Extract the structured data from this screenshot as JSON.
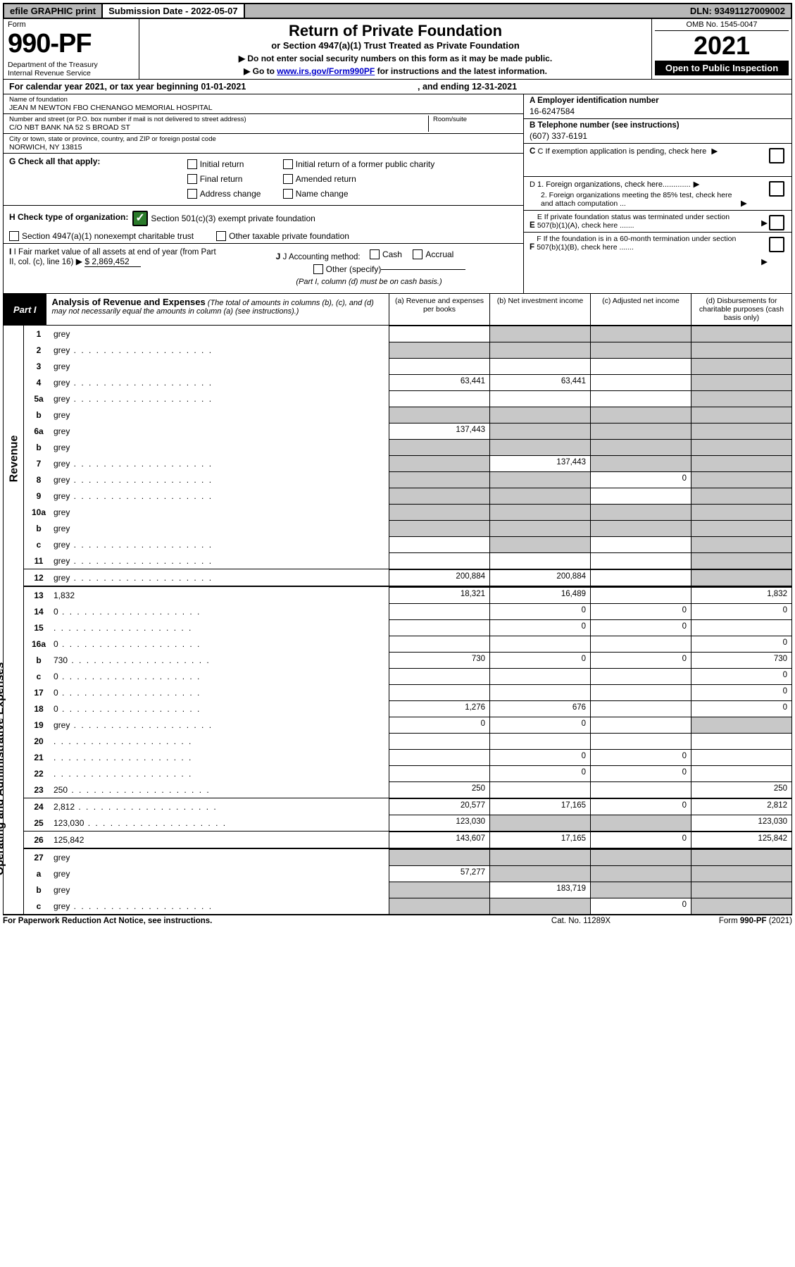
{
  "topbar": {
    "efile": "efile GRAPHIC print",
    "subdate_label": "Submission Date - ",
    "subdate": "2022-05-07",
    "dln_label": "DLN: ",
    "dln": "93491127009002"
  },
  "header": {
    "form_word": "Form",
    "form_num": "990-PF",
    "dept": "Department of the Treasury\nInternal Revenue Service",
    "title": "Return of Private Foundation",
    "sub1": "or Section 4947(a)(1) Trust Treated as Private Foundation",
    "sub2a": "▶ Do not enter social security numbers on this form as it may be made public.",
    "sub2b_pre": "▶ Go to ",
    "sub2b_link": "www.irs.gov/Form990PF",
    "sub2b_post": " for instructions and the latest information.",
    "omb": "OMB No. 1545-0047",
    "year": "2021",
    "open": "Open to Public Inspection"
  },
  "cal": {
    "pre": "For calendar year 2021, or tax year beginning ",
    "begin": "01-01-2021",
    "mid": ", and ending ",
    "end": "12-31-2021"
  },
  "info": {
    "name_label": "Name of foundation",
    "name": "JEAN M NEWTON FBO CHENANGO MEMORIAL HOSPITAL",
    "addr_label": "Number and street (or P.O. box number if mail is not delivered to street address)",
    "addr": "C/O NBT BANK NA 52 S BROAD ST",
    "room_label": "Room/suite",
    "city_label": "City or town, state or province, country, and ZIP or foreign postal code",
    "city": "NORWICH, NY  13815",
    "a_label": "A Employer identification number",
    "a_val": "16-6247584",
    "b_label": "B Telephone number (see instructions)",
    "b_val": "(607) 337-6191",
    "c_label": "C  If exemption application is pending, check here",
    "d1": "D 1. Foreign organizations, check here.............",
    "d2": "2. Foreign organizations meeting the 85% test, check here and attach computation ...",
    "e_label": "E  If private foundation status was terminated under section 507(b)(1)(A), check here .......",
    "f_label": "F  If the foundation is in a 60-month termination under section 507(b)(1)(B), check here ......."
  },
  "g": {
    "label": "G Check all that apply:",
    "opts": [
      "Initial return",
      "Final return",
      "Address change",
      "Initial return of a former public charity",
      "Amended return",
      "Name change"
    ]
  },
  "h": {
    "label": "H Check type of organization:",
    "opt1": "Section 501(c)(3) exempt private foundation",
    "opt2": "Section 4947(a)(1) nonexempt charitable trust",
    "opt3": "Other taxable private foundation"
  },
  "i": {
    "label": "I Fair market value of all assets at end of year (from Part II, col. (c), line 16)",
    "arrow": "▶",
    "val": "$  2,869,452"
  },
  "j": {
    "label": "J Accounting method:",
    "cash": "Cash",
    "accrual": "Accrual",
    "other": "Other (specify)",
    "note": "(Part I, column (d) must be on cash basis.)"
  },
  "part1": {
    "tab": "Part I",
    "title": "Analysis of Revenue and Expenses",
    "note": " (The total of amounts in columns (b), (c), and (d) may not necessarily equal the amounts in column (a) (see instructions).)",
    "cols": {
      "a": "(a) Revenue and expenses per books",
      "b": "(b) Net investment income",
      "c": "(c) Adjusted net income",
      "d": "(d) Disbursements for charitable purposes (cash basis only)"
    }
  },
  "sides": {
    "revenue": "Revenue",
    "expenses": "Operating and Administrative Expenses"
  },
  "rows": [
    {
      "n": "1",
      "d": "grey",
      "a": "",
      "b": "grey",
      "c": "grey"
    },
    {
      "n": "2",
      "d": "grey",
      "dots": true,
      "a": "grey",
      "b": "grey",
      "c": "grey"
    },
    {
      "n": "3",
      "d": "grey",
      "a": "",
      "b": "",
      "c": ""
    },
    {
      "n": "4",
      "d": "grey",
      "dots": true,
      "a": "63,441",
      "b": "63,441",
      "c": ""
    },
    {
      "n": "5a",
      "d": "grey",
      "dots": true,
      "a": "",
      "b": "",
      "c": ""
    },
    {
      "n": "b",
      "d": "grey",
      "a": "grey",
      "b": "grey",
      "c": "grey"
    },
    {
      "n": "6a",
      "d": "grey",
      "a": "137,443",
      "b": "grey",
      "c": "grey"
    },
    {
      "n": "b",
      "d": "grey",
      "a": "grey",
      "b": "grey",
      "c": "grey"
    },
    {
      "n": "7",
      "d": "grey",
      "dots": true,
      "a": "grey",
      "b": "137,443",
      "c": "grey"
    },
    {
      "n": "8",
      "d": "grey",
      "dots": true,
      "a": "grey",
      "b": "grey",
      "c": "0"
    },
    {
      "n": "9",
      "d": "grey",
      "dots": true,
      "a": "grey",
      "b": "grey",
      "c": ""
    },
    {
      "n": "10a",
      "d": "grey",
      "a": "grey",
      "b": "grey",
      "c": "grey"
    },
    {
      "n": "b",
      "d": "grey",
      "a": "grey",
      "b": "grey",
      "c": "grey"
    },
    {
      "n": "c",
      "d": "grey",
      "dots": true,
      "a": "",
      "b": "grey",
      "c": ""
    },
    {
      "n": "11",
      "d": "grey",
      "dots": true,
      "a": "",
      "b": "",
      "c": ""
    },
    {
      "n": "12",
      "d": "grey",
      "dots": true,
      "a": "200,884",
      "b": "200,884",
      "c": "",
      "sep": true
    },
    {
      "n": "13",
      "d": "1,832",
      "a": "18,321",
      "b": "16,489",
      "c": "",
      "top": true
    },
    {
      "n": "14",
      "d": "0",
      "dots": true,
      "a": "",
      "b": "0",
      "c": "0"
    },
    {
      "n": "15",
      "d": "",
      "dots": true,
      "a": "",
      "b": "0",
      "c": "0"
    },
    {
      "n": "16a",
      "d": "0",
      "dots": true,
      "a": "",
      "b": "",
      "c": ""
    },
    {
      "n": "b",
      "d": "730",
      "dots": true,
      "a": "730",
      "b": "0",
      "c": "0"
    },
    {
      "n": "c",
      "d": "0",
      "dots": true,
      "a": "",
      "b": "",
      "c": ""
    },
    {
      "n": "17",
      "d": "0",
      "dots": true,
      "a": "",
      "b": "",
      "c": ""
    },
    {
      "n": "18",
      "d": "0",
      "dots": true,
      "a": "1,276",
      "b": "676",
      "c": ""
    },
    {
      "n": "19",
      "d": "grey",
      "dots": true,
      "a": "0",
      "b": "0",
      "c": ""
    },
    {
      "n": "20",
      "d": "",
      "dots": true,
      "a": "",
      "b": "",
      "c": ""
    },
    {
      "n": "21",
      "d": "",
      "dots": true,
      "a": "",
      "b": "0",
      "c": "0"
    },
    {
      "n": "22",
      "d": "",
      "dots": true,
      "a": "",
      "b": "0",
      "c": "0"
    },
    {
      "n": "23",
      "d": "250",
      "dots": true,
      "a": "250",
      "b": "",
      "c": ""
    },
    {
      "n": "24",
      "d": "2,812",
      "dots": true,
      "a": "20,577",
      "b": "17,165",
      "c": "0",
      "sep": true
    },
    {
      "n": "25",
      "d": "123,030",
      "dots": true,
      "a": "123,030",
      "b": "grey",
      "c": "grey"
    },
    {
      "n": "26",
      "d": "125,842",
      "a": "143,607",
      "b": "17,165",
      "c": "0",
      "sep": true
    },
    {
      "n": "27",
      "d": "grey",
      "a": "grey",
      "b": "grey",
      "c": "grey",
      "top": true
    },
    {
      "n": "a",
      "d": "grey",
      "a": "57,277",
      "b": "grey",
      "c": "grey"
    },
    {
      "n": "b",
      "d": "grey",
      "a": "grey",
      "b": "183,719",
      "c": "grey"
    },
    {
      "n": "c",
      "d": "grey",
      "dots": true,
      "a": "grey",
      "b": "grey",
      "c": "0"
    }
  ],
  "footer": {
    "f1": "For Paperwork Reduction Act Notice, see instructions.",
    "f2": "Cat. No. 11289X",
    "f3": "Form 990-PF (2021)"
  }
}
